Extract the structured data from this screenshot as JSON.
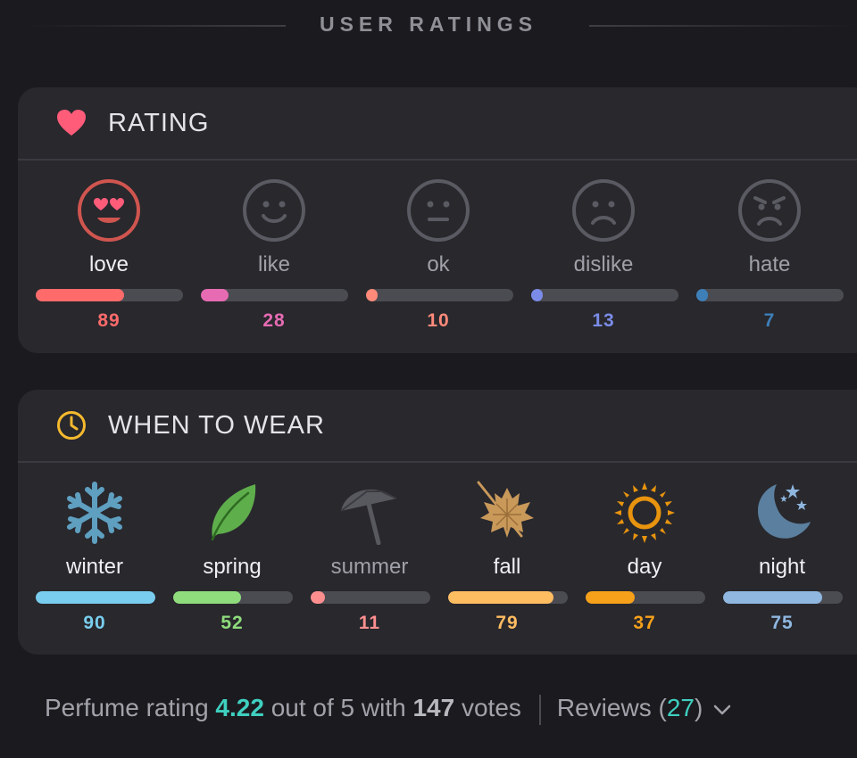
{
  "header": {
    "title": "USER RATINGS"
  },
  "rating": {
    "title": "RATING",
    "items": [
      {
        "label": "love",
        "count": "89",
        "level": 0.6,
        "color": "#ff6b6b",
        "icon": "heart-eyes-face-icon"
      },
      {
        "label": "like",
        "count": "28",
        "level": 0.19,
        "color": "#e66bb3",
        "icon": "smile-face-icon"
      },
      {
        "label": "ok",
        "count": "10",
        "level": 0.06,
        "color": "#ff8a7a",
        "icon": "neutral-face-icon"
      },
      {
        "label": "dislike",
        "count": "13",
        "level": 0.08,
        "color": "#7b8ce8",
        "icon": "frown-face-icon"
      },
      {
        "label": "hate",
        "count": "7",
        "level": 0.04,
        "color": "#3e7fb8",
        "icon": "angry-face-icon"
      }
    ]
  },
  "wear": {
    "title": "WHEN TO WEAR",
    "items": [
      {
        "label": "winter",
        "count": "90",
        "level": 1.0,
        "color": "#79cdee",
        "icon": "snowflake-icon"
      },
      {
        "label": "spring",
        "count": "52",
        "level": 0.57,
        "color": "#8fdc7c",
        "icon": "leaf-icon"
      },
      {
        "label": "summer",
        "count": "11",
        "level": 0.12,
        "color": "#ff8f8f",
        "icon": "umbrella-icon"
      },
      {
        "label": "fall",
        "count": "79",
        "level": 0.88,
        "color": "#ffbd62",
        "icon": "maple-leaf-icon"
      },
      {
        "label": "day",
        "count": "37",
        "level": 0.41,
        "color": "#f7a11a",
        "icon": "sun-icon"
      },
      {
        "label": "night",
        "count": "75",
        "level": 0.83,
        "color": "#8fb7df",
        "icon": "moon-stars-icon"
      }
    ]
  },
  "footer": {
    "prefix": "Perfume rating ",
    "score": "4.22",
    "middle": " out of 5 with ",
    "votes": "147",
    "suffix": " votes",
    "reviews_label": "Reviews (",
    "reviews_count": "27",
    "reviews_close": ")"
  }
}
